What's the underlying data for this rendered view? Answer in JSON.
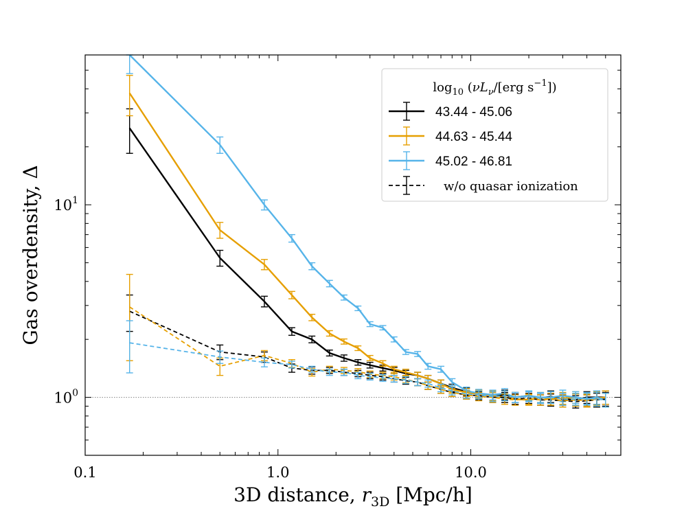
{
  "chart_data": {
    "type": "line",
    "xscale": "log",
    "yscale": "log",
    "xlim": [
      0.1,
      60
    ],
    "ylim": [
      0.5,
      60
    ],
    "xlabel": "3D distance, r3D [Mpc/h]",
    "xlabel_parts": {
      "prefix": "3D distance, ",
      "var": "r",
      "sub": "3D",
      "suffix": " [Mpc/h]"
    },
    "ylabel": "Gas overdensity, Δ",
    "x_ticks": [
      {
        "value": 0.1,
        "label": "0.1"
      },
      {
        "value": 1.0,
        "label": "1.0"
      },
      {
        "value": 10.0,
        "label": "10.0"
      }
    ],
    "y_ticks": [
      {
        "value": 1,
        "base": "10",
        "exp": "0"
      },
      {
        "value": 10,
        "base": "10",
        "exp": "1"
      }
    ],
    "reference_line": {
      "y": 1.0,
      "style": "dotted",
      "color": "#808080"
    },
    "legend": {
      "placement": "upper right",
      "title": "log10 (νLν/[erg s−1])",
      "title_parts": {
        "log": "log",
        "sub10": "10",
        "open": " (",
        "nu": "ν",
        "L": "L",
        "subnu": "ν",
        "mid": "/[erg s",
        "exp": "−1",
        "close": "])"
      },
      "entries": [
        {
          "label": "43.44 - 45.06",
          "color": "#000000",
          "style": "solid"
        },
        {
          "label": "44.63 - 45.44",
          "color": "#E69F00",
          "style": "solid"
        },
        {
          "label": "45.02 - 46.81",
          "color": "#56B4E9",
          "style": "solid"
        },
        {
          "label": "w/o quasar ionization",
          "color": "#000000",
          "style": "dashed"
        }
      ]
    },
    "series": [
      {
        "name": "43.44 - 45.06",
        "color": "#000000",
        "style": "solid",
        "x": [
          0.17,
          0.5,
          0.85,
          1.18,
          1.5,
          1.85,
          2.2,
          2.6,
          3.0,
          3.5,
          4.0,
          4.6,
          5.3,
          6.0,
          7.0,
          8.0,
          9.5,
          11,
          13,
          15,
          17,
          20,
          23,
          26,
          30,
          35,
          40,
          45,
          50
        ],
        "y": [
          25,
          5.3,
          3.15,
          2.2,
          2.0,
          1.7,
          1.6,
          1.52,
          1.47,
          1.42,
          1.38,
          1.33,
          1.3,
          1.25,
          1.18,
          1.12,
          1.07,
          1.04,
          1.02,
          1.03,
          1.0,
          1.02,
          0.99,
          1.01,
          0.98,
          0.97,
          1.0,
          1.0,
          1.0
        ],
        "err": [
          6.5,
          0.5,
          0.2,
          0.1,
          0.08,
          0.06,
          0.06,
          0.05,
          0.05,
          0.05,
          0.05,
          0.05,
          0.05,
          0.05,
          0.05,
          0.05,
          0.05,
          0.05,
          0.06,
          0.06,
          0.06,
          0.06,
          0.06,
          0.07,
          0.07,
          0.07,
          0.07,
          0.08,
          0.08
        ]
      },
      {
        "name": "44.63 - 45.44",
        "color": "#E69F00",
        "style": "solid",
        "x": [
          0.17,
          0.5,
          0.85,
          1.18,
          1.5,
          1.85,
          2.2,
          2.6,
          3.0,
          3.5,
          4.0,
          4.6,
          5.3,
          6.0,
          7.0,
          8.0,
          9.5,
          11,
          13,
          15,
          17,
          20,
          23,
          26,
          30,
          35,
          40,
          45,
          50
        ],
        "y": [
          38,
          7.4,
          4.9,
          3.4,
          2.6,
          2.15,
          1.95,
          1.8,
          1.6,
          1.5,
          1.4,
          1.35,
          1.3,
          1.25,
          1.18,
          1.1,
          1.06,
          1.04,
          1.02,
          1.0,
          0.98,
          0.97,
          1.0,
          0.98,
          0.99,
          1.0,
          0.97,
          0.99,
          1.0
        ],
        "err": [
          9,
          0.7,
          0.3,
          0.15,
          0.1,
          0.07,
          0.06,
          0.05,
          0.05,
          0.05,
          0.05,
          0.05,
          0.05,
          0.05,
          0.05,
          0.05,
          0.05,
          0.05,
          0.06,
          0.06,
          0.06,
          0.06,
          0.06,
          0.07,
          0.07,
          0.07,
          0.07,
          0.08,
          0.08
        ]
      },
      {
        "name": "45.02 - 46.81",
        "color": "#56B4E9",
        "style": "solid",
        "x": [
          0.17,
          0.5,
          0.85,
          1.18,
          1.5,
          1.85,
          2.2,
          2.6,
          3.0,
          3.5,
          4.0,
          4.6,
          5.3,
          6.0,
          7.0,
          8.0,
          9.5,
          11,
          13,
          15,
          17,
          20,
          23,
          26,
          30,
          35,
          40,
          45,
          50
        ],
        "y": [
          60,
          20.5,
          10.0,
          6.7,
          4.8,
          3.9,
          3.3,
          2.9,
          2.4,
          2.3,
          2.0,
          1.72,
          1.68,
          1.45,
          1.4,
          1.2,
          1.08,
          1.05,
          1.03,
          1.05,
          1.0,
          1.02,
          1.0,
          1.0,
          1.02,
          1.0,
          0.98,
          1.0,
          0.97
        ],
        "err": [
          12,
          2.0,
          0.6,
          0.3,
          0.2,
          0.15,
          0.1,
          0.08,
          0.07,
          0.06,
          0.06,
          0.05,
          0.05,
          0.05,
          0.05,
          0.05,
          0.05,
          0.05,
          0.06,
          0.06,
          0.06,
          0.06,
          0.06,
          0.07,
          0.07,
          0.07,
          0.07,
          0.08,
          0.08
        ]
      },
      {
        "name": "w/o quasar ionization (43.44 - 45.06)",
        "color": "#000000",
        "style": "dashed",
        "x": [
          0.17,
          0.5,
          0.85,
          1.18,
          1.5,
          1.85,
          2.2,
          2.6,
          3.0,
          3.5,
          4.0,
          4.6,
          5.3,
          6.0,
          7.0,
          8.0,
          9.5,
          11,
          13,
          15,
          17,
          20,
          23,
          26,
          30,
          35,
          40,
          45,
          50
        ],
        "y": [
          2.8,
          1.72,
          1.62,
          1.42,
          1.38,
          1.38,
          1.35,
          1.33,
          1.3,
          1.28,
          1.25,
          1.22,
          1.2,
          1.15,
          1.1,
          1.06,
          1.03,
          1.02,
          1.0,
          1.0,
          0.98,
          0.99,
          0.97,
          0.97,
          0.96,
          0.95,
          0.96,
          0.97,
          0.98
        ],
        "err": [
          0.6,
          0.15,
          0.1,
          0.07,
          0.06,
          0.05,
          0.05,
          0.05,
          0.05,
          0.05,
          0.05,
          0.05,
          0.05,
          0.05,
          0.05,
          0.05,
          0.05,
          0.05,
          0.06,
          0.06,
          0.06,
          0.06,
          0.06,
          0.07,
          0.07,
          0.07,
          0.07,
          0.08,
          0.08
        ]
      },
      {
        "name": "w/o quasar ionization (44.63 - 45.44)",
        "color": "#E69F00",
        "style": "dashed",
        "x": [
          0.17,
          0.5,
          0.85,
          1.18,
          1.5,
          1.85,
          2.2,
          2.6,
          3.0,
          3.5,
          4.0,
          4.6,
          5.3,
          6.0,
          7.0,
          8.0,
          9.5,
          11,
          13,
          15,
          17,
          20,
          23,
          26,
          30,
          35,
          40,
          45,
          50
        ],
        "y": [
          2.95,
          1.45,
          1.65,
          1.5,
          1.35,
          1.4,
          1.38,
          1.36,
          1.32,
          1.3,
          1.28,
          1.24,
          1.2,
          1.15,
          1.1,
          1.06,
          1.03,
          1.01,
          1.0,
          0.98,
          0.97,
          0.98,
          0.97,
          0.98,
          0.96,
          0.97,
          0.96,
          0.98,
          0.97
        ],
        "err": [
          1.4,
          0.15,
          0.1,
          0.07,
          0.06,
          0.05,
          0.05,
          0.05,
          0.05,
          0.05,
          0.05,
          0.05,
          0.05,
          0.05,
          0.05,
          0.05,
          0.05,
          0.05,
          0.06,
          0.06,
          0.06,
          0.06,
          0.06,
          0.07,
          0.07,
          0.07,
          0.07,
          0.08,
          0.08
        ]
      },
      {
        "name": "w/o quasar ionization (45.02 - 46.81)",
        "color": "#56B4E9",
        "style": "dashed",
        "x": [
          0.17,
          0.5,
          0.85,
          1.18,
          1.5,
          1.85,
          2.2,
          2.6,
          3.0,
          3.5,
          4.0,
          4.6,
          5.3,
          6.0,
          7.0,
          8.0,
          9.5,
          11,
          13,
          15,
          17,
          20,
          23,
          26,
          30,
          35,
          40,
          45,
          50
        ],
        "y": [
          1.92,
          1.62,
          1.52,
          1.48,
          1.4,
          1.35,
          1.35,
          1.3,
          1.28,
          1.26,
          1.25,
          1.23,
          1.2,
          1.18,
          1.12,
          1.08,
          1.04,
          1.03,
          1.01,
          1.02,
          1.0,
          1.01,
          0.99,
          1.0,
          0.98,
          0.98,
          0.99,
          0.98,
          0.97
        ],
        "err": [
          0.58,
          0.12,
          0.08,
          0.06,
          0.05,
          0.05,
          0.05,
          0.05,
          0.05,
          0.05,
          0.05,
          0.05,
          0.05,
          0.05,
          0.05,
          0.05,
          0.05,
          0.05,
          0.06,
          0.06,
          0.06,
          0.06,
          0.06,
          0.07,
          0.07,
          0.07,
          0.07,
          0.08,
          0.08
        ]
      }
    ]
  }
}
